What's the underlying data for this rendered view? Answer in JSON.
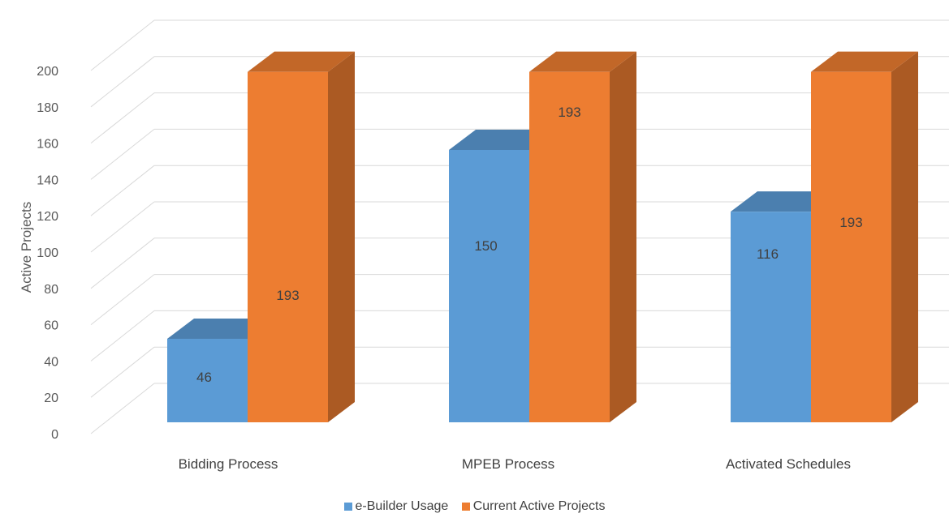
{
  "chart_data": {
    "type": "bar",
    "style": "3d-clustered-column",
    "categories": [
      "Bidding Process",
      "MPEB Process",
      "Activated Schedules"
    ],
    "series": [
      {
        "name": "e-Builder Usage",
        "values": [
          46,
          150,
          116
        ],
        "color": "#5B9BD5"
      },
      {
        "name": "Current Active Projects",
        "values": [
          193,
          193,
          193
        ],
        "color": "#ED7D31"
      }
    ],
    "data_labels": [
      [
        "46",
        "150",
        "116"
      ],
      [
        "193",
        "193",
        "193"
      ]
    ],
    "ylabel": "Active Projects",
    "xlabel": "",
    "ylim": [
      0,
      200
    ],
    "yticks": [
      "0",
      "20",
      "40",
      "60",
      "80",
      "100",
      "120",
      "140",
      "160",
      "180",
      "200"
    ],
    "grid": true,
    "legend_position": "bottom"
  }
}
